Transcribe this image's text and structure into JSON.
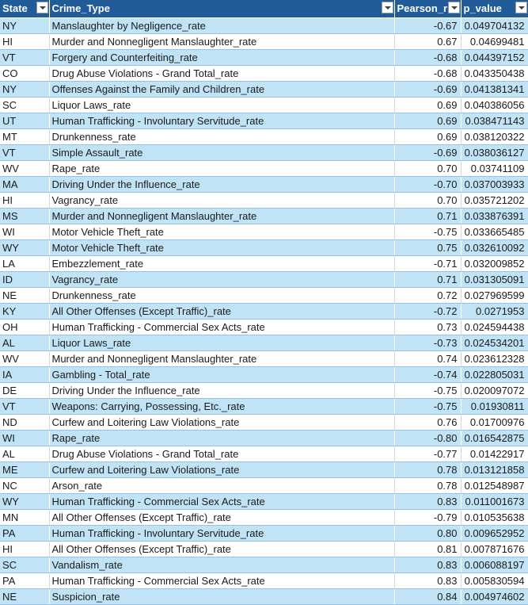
{
  "headers": {
    "state": "State",
    "crime_type": "Crime_Type",
    "pearson_r": "Pearson_r",
    "p_value": "p_value"
  },
  "rows": [
    {
      "state": "NY",
      "crime": "Manslaughter by Negligence_rate",
      "r": "-0.67",
      "p": "0.049704132"
    },
    {
      "state": "HI",
      "crime": "Murder and Nonnegligent Manslaughter_rate",
      "r": "0.67",
      "p": "0.04699481"
    },
    {
      "state": "VT",
      "crime": "Forgery and Counterfeiting_rate",
      "r": "-0.68",
      "p": "0.044397152"
    },
    {
      "state": "CO",
      "crime": "Drug Abuse Violations - Grand Total_rate",
      "r": "-0.68",
      "p": "0.043350438"
    },
    {
      "state": "NY",
      "crime": "Offenses Against the Family and Children_rate",
      "r": "-0.69",
      "p": "0.041381341"
    },
    {
      "state": "SC",
      "crime": "Liquor Laws_rate",
      "r": "0.69",
      "p": "0.040386056"
    },
    {
      "state": "UT",
      "crime": "Human Trafficking - Involuntary Servitude_rate",
      "r": "0.69",
      "p": "0.038471143"
    },
    {
      "state": "MT",
      "crime": "Drunkenness_rate",
      "r": "0.69",
      "p": "0.038120322"
    },
    {
      "state": "VT",
      "crime": "Simple Assault_rate",
      "r": "-0.69",
      "p": "0.038036127"
    },
    {
      "state": "WV",
      "crime": "Rape_rate",
      "r": "0.70",
      "p": "0.03741109"
    },
    {
      "state": "MA",
      "crime": "Driving Under the Influence_rate",
      "r": "-0.70",
      "p": "0.037003933"
    },
    {
      "state": "HI",
      "crime": "Vagrancy_rate",
      "r": "0.70",
      "p": "0.035721202"
    },
    {
      "state": "MS",
      "crime": "Murder and Nonnegligent Manslaughter_rate",
      "r": "0.71",
      "p": "0.033876391"
    },
    {
      "state": "WI",
      "crime": "Motor Vehicle Theft_rate",
      "r": "-0.75",
      "p": "0.033665485"
    },
    {
      "state": "WY",
      "crime": "Motor Vehicle Theft_rate",
      "r": "0.75",
      "p": "0.032610092"
    },
    {
      "state": "LA",
      "crime": "Embezzlement_rate",
      "r": "-0.71",
      "p": "0.032009852"
    },
    {
      "state": "ID",
      "crime": "Vagrancy_rate",
      "r": "0.71",
      "p": "0.031305091"
    },
    {
      "state": "NE",
      "crime": "Drunkenness_rate",
      "r": "0.72",
      "p": "0.027969599"
    },
    {
      "state": "KY",
      "crime": "All Other Offenses (Except Traffic)_rate",
      "r": "-0.72",
      "p": "0.0271953"
    },
    {
      "state": "OH",
      "crime": "Human Trafficking - Commercial Sex Acts_rate",
      "r": "0.73",
      "p": "0.024594438"
    },
    {
      "state": "AL",
      "crime": "Liquor Laws_rate",
      "r": "-0.73",
      "p": "0.024534201"
    },
    {
      "state": "WV",
      "crime": "Murder and Nonnegligent Manslaughter_rate",
      "r": "0.74",
      "p": "0.023612328"
    },
    {
      "state": "IA",
      "crime": "Gambling - Total_rate",
      "r": "-0.74",
      "p": "0.022805031"
    },
    {
      "state": "DE",
      "crime": "Driving Under the Influence_rate",
      "r": "-0.75",
      "p": "0.020097072"
    },
    {
      "state": "VT",
      "crime": "Weapons: Carrying, Possessing, Etc._rate",
      "r": "-0.75",
      "p": "0.01930811"
    },
    {
      "state": "ND",
      "crime": "Curfew and Loitering Law Violations_rate",
      "r": "0.76",
      "p": "0.01700976"
    },
    {
      "state": "WI",
      "crime": "Rape_rate",
      "r": "-0.80",
      "p": "0.016542875"
    },
    {
      "state": "AL",
      "crime": "Drug Abuse Violations - Grand Total_rate",
      "r": "-0.77",
      "p": "0.01422917"
    },
    {
      "state": "ME",
      "crime": "Curfew and Loitering Law Violations_rate",
      "r": "0.78",
      "p": "0.013121858"
    },
    {
      "state": "NC",
      "crime": "Arson_rate",
      "r": "0.78",
      "p": "0.012548987"
    },
    {
      "state": "WY",
      "crime": "Human Trafficking - Commercial Sex Acts_rate",
      "r": "0.83",
      "p": "0.011001673"
    },
    {
      "state": "MN",
      "crime": "All Other Offenses (Except Traffic)_rate",
      "r": "-0.79",
      "p": "0.010535638"
    },
    {
      "state": "PA",
      "crime": "Human Trafficking - Involuntary Servitude_rate",
      "r": "0.80",
      "p": "0.009652952"
    },
    {
      "state": "HI",
      "crime": "All Other Offenses (Except Traffic)_rate",
      "r": "0.81",
      "p": "0.007871676"
    },
    {
      "state": "SC",
      "crime": "Vandalism_rate",
      "r": "0.83",
      "p": "0.006088197"
    },
    {
      "state": "PA",
      "crime": "Human Trafficking - Commercial Sex Acts_rate",
      "r": "0.83",
      "p": "0.005830594"
    },
    {
      "state": "NE",
      "crime": "Suspicion_rate",
      "r": "0.84",
      "p": "0.004974602"
    }
  ],
  "colors": {
    "header_bg": "#215c98",
    "header_text": "#ffffff",
    "band_row": "#c0e4f5",
    "plain_row": "#ffffff"
  },
  "icons": {
    "filter": "filter-dropdown-arrow-icon"
  }
}
